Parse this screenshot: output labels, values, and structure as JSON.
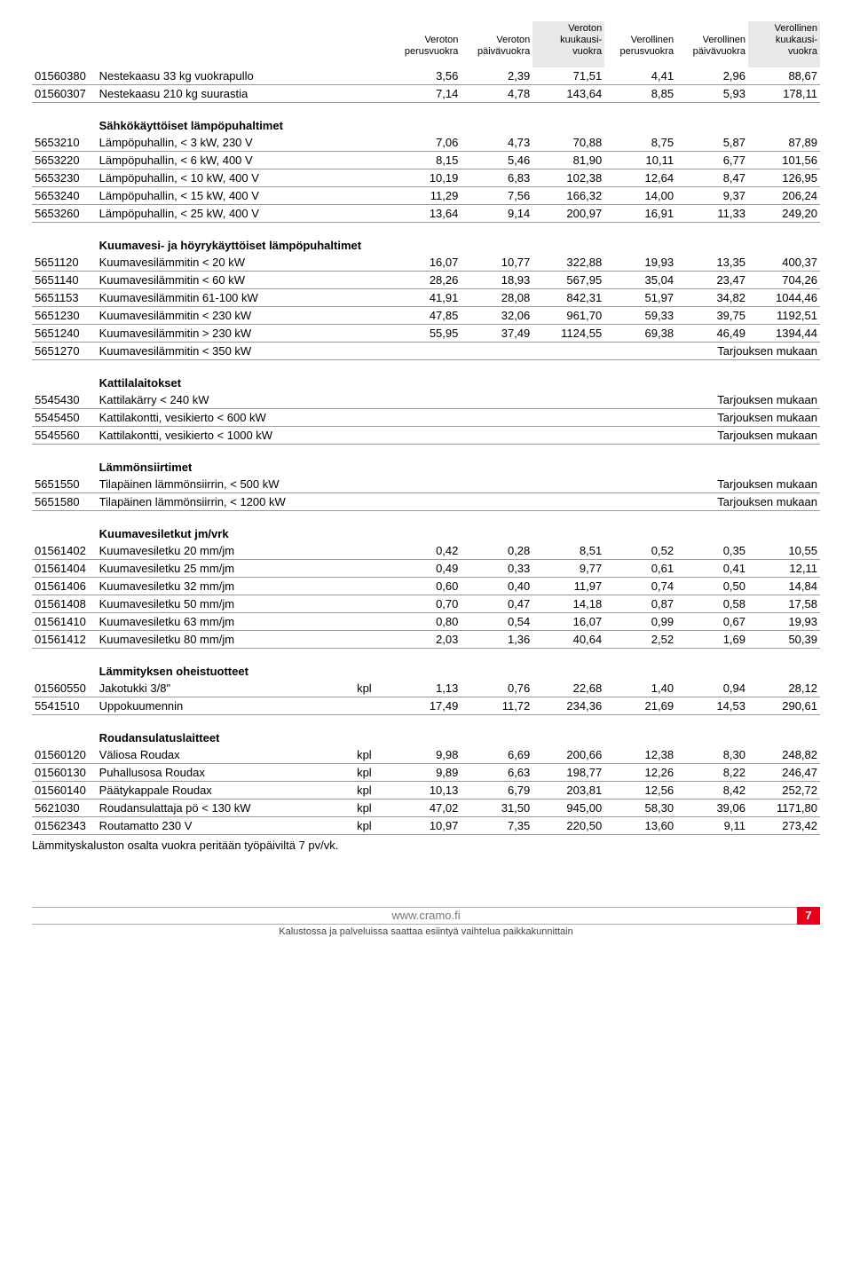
{
  "header": {
    "cols": [
      "Veroton\nperusvuokra",
      "Veroton\npäivävuokra",
      "Veroton\nkuukausi-\nvuokra",
      "Verollinen\nperusvuokra",
      "Verollinen\npäivävuokra",
      "Verollinen\nkuukausi-\nvuokra"
    ]
  },
  "sections": [
    {
      "title": "",
      "rows": [
        {
          "code": "01560380",
          "desc": "Nestekaasu 33 kg vuokrapullo",
          "unit": "",
          "v": [
            "3,56",
            "2,39",
            "71,51",
            "4,41",
            "2,96",
            "88,67"
          ]
        },
        {
          "code": "01560307",
          "desc": "Nestekaasu 210 kg suurastia",
          "unit": "",
          "v": [
            "7,14",
            "4,78",
            "143,64",
            "8,85",
            "5,93",
            "178,11"
          ]
        }
      ]
    },
    {
      "title": "Sähkökäyttöiset lämpöpuhaltimet",
      "rows": [
        {
          "code": "5653210",
          "desc": "Lämpöpuhallin, < 3 kW, 230 V",
          "unit": "",
          "v": [
            "7,06",
            "4,73",
            "70,88",
            "8,75",
            "5,87",
            "87,89"
          ]
        },
        {
          "code": "5653220",
          "desc": "Lämpöpuhallin, < 6 kW, 400 V",
          "unit": "",
          "v": [
            "8,15",
            "5,46",
            "81,90",
            "10,11",
            "6,77",
            "101,56"
          ]
        },
        {
          "code": "5653230",
          "desc": "Lämpöpuhallin, < 10 kW, 400 V",
          "unit": "",
          "v": [
            "10,19",
            "6,83",
            "102,38",
            "12,64",
            "8,47",
            "126,95"
          ]
        },
        {
          "code": "5653240",
          "desc": "Lämpöpuhallin, < 15 kW, 400 V",
          "unit": "",
          "v": [
            "11,29",
            "7,56",
            "166,32",
            "14,00",
            "9,37",
            "206,24"
          ]
        },
        {
          "code": "5653260",
          "desc": "Lämpöpuhallin, < 25 kW, 400 V",
          "unit": "",
          "v": [
            "13,64",
            "9,14",
            "200,97",
            "16,91",
            "11,33",
            "249,20"
          ]
        }
      ]
    },
    {
      "title": "Kuumavesi- ja höyrykäyttöiset lämpöpuhaltimet",
      "rows": [
        {
          "code": "5651120",
          "desc": "Kuumavesilämmitin < 20 kW",
          "unit": "",
          "v": [
            "16,07",
            "10,77",
            "322,88",
            "19,93",
            "13,35",
            "400,37"
          ]
        },
        {
          "code": "5651140",
          "desc": "Kuumavesilämmitin < 60 kW",
          "unit": "",
          "v": [
            "28,26",
            "18,93",
            "567,95",
            "35,04",
            "23,47",
            "704,26"
          ]
        },
        {
          "code": "5651153",
          "desc": "Kuumavesilämmitin 61-100 kW",
          "unit": "",
          "v": [
            "41,91",
            "28,08",
            "842,31",
            "51,97",
            "34,82",
            "1044,46"
          ]
        },
        {
          "code": "5651230",
          "desc": "Kuumavesilämmitin < 230 kW",
          "unit": "",
          "v": [
            "47,85",
            "32,06",
            "961,70",
            "59,33",
            "39,75",
            "1192,51"
          ]
        },
        {
          "code": "5651240",
          "desc": "Kuumavesilämmitin > 230 kW",
          "unit": "",
          "v": [
            "55,95",
            "37,49",
            "1124,55",
            "69,38",
            "46,49",
            "1394,44"
          ]
        },
        {
          "code": "5651270",
          "desc": "Kuumavesilämmitin < 350 kW",
          "unit": "",
          "tarj": "Tarjouksen mukaan"
        }
      ]
    },
    {
      "title": "Kattilalaitokset",
      "rows": [
        {
          "code": "5545430",
          "desc": "Kattilakärry < 240 kW",
          "unit": "",
          "tarj": "Tarjouksen mukaan"
        },
        {
          "code": "5545450",
          "desc": "Kattilakontti, vesikierto < 600 kW",
          "unit": "",
          "tarj": "Tarjouksen mukaan"
        },
        {
          "code": "5545560",
          "desc": "Kattilakontti, vesikierto < 1000 kW",
          "unit": "",
          "tarj": "Tarjouksen mukaan"
        }
      ]
    },
    {
      "title": "Lämmönsiirtimet",
      "rows": [
        {
          "code": "5651550",
          "desc": "Tilapäinen lämmönsiirrin, < 500 kW",
          "unit": "",
          "tarj": "Tarjouksen mukaan"
        },
        {
          "code": "5651580",
          "desc": "Tilapäinen lämmönsiirrin, < 1200 kW",
          "unit": "",
          "tarj": "Tarjouksen mukaan"
        }
      ]
    },
    {
      "title": "Kuumavesiletkut  jm/vrk",
      "rows": [
        {
          "code": "01561402",
          "desc": "Kuumavesiletku 20 mm/jm",
          "unit": "",
          "v": [
            "0,42",
            "0,28",
            "8,51",
            "0,52",
            "0,35",
            "10,55"
          ]
        },
        {
          "code": "01561404",
          "desc": "Kuumavesiletku 25 mm/jm",
          "unit": "",
          "v": [
            "0,49",
            "0,33",
            "9,77",
            "0,61",
            "0,41",
            "12,11"
          ]
        },
        {
          "code": "01561406",
          "desc": "Kuumavesiletku 32 mm/jm",
          "unit": "",
          "v": [
            "0,60",
            "0,40",
            "11,97",
            "0,74",
            "0,50",
            "14,84"
          ]
        },
        {
          "code": "01561408",
          "desc": "Kuumavesiletku 50 mm/jm",
          "unit": "",
          "v": [
            "0,70",
            "0,47",
            "14,18",
            "0,87",
            "0,58",
            "17,58"
          ]
        },
        {
          "code": "01561410",
          "desc": "Kuumavesiletku 63 mm/jm",
          "unit": "",
          "v": [
            "0,80",
            "0,54",
            "16,07",
            "0,99",
            "0,67",
            "19,93"
          ]
        },
        {
          "code": "01561412",
          "desc": "Kuumavesiletku 80 mm/jm",
          "unit": "",
          "v": [
            "2,03",
            "1,36",
            "40,64",
            "2,52",
            "1,69",
            "50,39"
          ]
        }
      ]
    },
    {
      "title": "Lämmityksen oheistuotteet",
      "rows": [
        {
          "code": "01560550",
          "desc": "Jakotukki 3/8\"",
          "unit": "kpl",
          "v": [
            "1,13",
            "0,76",
            "22,68",
            "1,40",
            "0,94",
            "28,12"
          ]
        },
        {
          "code": "5541510",
          "desc": "Uppokuumennin",
          "unit": "",
          "v": [
            "17,49",
            "11,72",
            "234,36",
            "21,69",
            "14,53",
            "290,61"
          ]
        }
      ]
    },
    {
      "title": "Roudansulatuslaitteet",
      "rows": [
        {
          "code": "01560120",
          "desc": "Väliosa Roudax",
          "unit": "kpl",
          "v": [
            "9,98",
            "6,69",
            "200,66",
            "12,38",
            "8,30",
            "248,82"
          ]
        },
        {
          "code": "01560130",
          "desc": "Puhallusosa Roudax",
          "unit": "kpl",
          "v": [
            "9,89",
            "6,63",
            "198,77",
            "12,26",
            "8,22",
            "246,47"
          ]
        },
        {
          "code": "01560140",
          "desc": "Päätykappale Roudax",
          "unit": "kpl",
          "v": [
            "10,13",
            "6,79",
            "203,81",
            "12,56",
            "8,42",
            "252,72"
          ]
        },
        {
          "code": "5621030",
          "desc": "Roudansulattaja pö < 130 kW",
          "unit": "kpl",
          "v": [
            "47,02",
            "31,50",
            "945,00",
            "58,30",
            "39,06",
            "1171,80"
          ]
        },
        {
          "code": "01562343",
          "desc": "Routamatto 230 V",
          "unit": "kpl",
          "v": [
            "10,97",
            "7,35",
            "220,50",
            "13,60",
            "9,11",
            "273,42"
          ]
        }
      ]
    }
  ],
  "note": "Lämmityskaluston osalta vuokra peritään työpäiviltä 7 pv/vk.",
  "footer": {
    "url": "www.cramo.fi",
    "sub": "Kalustossa ja palveluissa saattaa esiintyä vaihtelua paikkakunnittain",
    "page": "7"
  }
}
